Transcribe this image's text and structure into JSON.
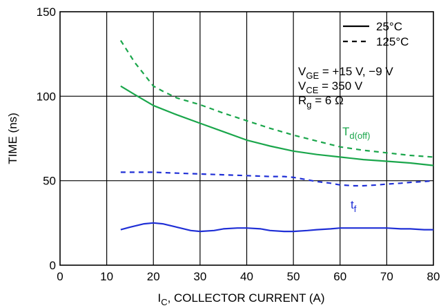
{
  "chart_data": {
    "type": "line",
    "xlabel": {
      "main": "I",
      "sub": "C",
      "rest": ", COLLECTOR CURRENT (A)"
    },
    "ylabel": "TIME (ns)",
    "xlim": [
      0,
      80
    ],
    "ylim": [
      0,
      150
    ],
    "xticks": [
      0,
      10,
      20,
      30,
      40,
      50,
      60,
      70,
      80
    ],
    "yticks": [
      0,
      50,
      100,
      150
    ],
    "grid": true,
    "legend": {
      "placement": "top-right",
      "entries": [
        {
          "label": "25°C",
          "style": "solid"
        },
        {
          "label": "125°C",
          "style": "dashed"
        }
      ]
    },
    "conditions": [
      {
        "main": "V",
        "sub": "GE",
        "rest": " = +15 V, −9 V"
      },
      {
        "main": "V",
        "sub": "CE",
        "rest": " = 350 V"
      },
      {
        "main": "R",
        "sub": "g",
        "rest": " = 6 Ω"
      }
    ],
    "series_labels": [
      {
        "main": "T",
        "sub": "d(off)",
        "color": "#1aa64b"
      },
      {
        "main": "t",
        "sub": "f",
        "color": "#1f2fd6"
      }
    ],
    "series": [
      {
        "group": "Td(off)",
        "style": "solid",
        "color": "#1aa64b",
        "x": [
          13,
          16,
          20,
          25,
          30,
          35,
          40,
          45,
          50,
          55,
          60,
          65,
          70,
          75,
          80
        ],
        "y": [
          106,
          101,
          94.5,
          89,
          84,
          79,
          74,
          70.5,
          67.5,
          65.5,
          64,
          62.5,
          61.5,
          60.5,
          59
        ]
      },
      {
        "group": "Td(off)",
        "style": "dashed",
        "color": "#1aa64b",
        "x": [
          13,
          16,
          20,
          22,
          25,
          30,
          35,
          40,
          45,
          50,
          55,
          60,
          65,
          70,
          75,
          80
        ],
        "y": [
          133,
          120,
          106,
          103,
          99,
          95,
          90,
          85.5,
          81,
          77,
          73.5,
          70,
          68,
          66.5,
          65,
          64
        ]
      },
      {
        "group": "tf",
        "style": "solid",
        "color": "#1f2fd6",
        "x": [
          13,
          15,
          18,
          20,
          22,
          25,
          28,
          30,
          33,
          35,
          38,
          40,
          43,
          45,
          48,
          50,
          53,
          55,
          58,
          60,
          63,
          65,
          68,
          70,
          73,
          75,
          78,
          80
        ],
        "y": [
          21,
          22.5,
          24.5,
          25,
          24.5,
          22.5,
          20.5,
          20,
          20.5,
          21.5,
          22,
          22,
          21.5,
          20.5,
          20,
          20,
          20.5,
          21,
          21.5,
          22,
          22,
          22,
          22,
          22,
          21.5,
          21.5,
          21,
          21
        ]
      },
      {
        "group": "tf",
        "style": "dashed",
        "color": "#1f2fd6",
        "x": [
          13,
          16,
          20,
          25,
          30,
          35,
          40,
          45,
          48,
          50,
          53,
          55,
          58,
          60,
          63,
          65,
          68,
          70,
          73,
          75,
          78,
          80
        ],
        "y": [
          55,
          55,
          55,
          54.5,
          54,
          53.5,
          53,
          52.5,
          52.5,
          52,
          50.5,
          49.5,
          48.5,
          47.5,
          47,
          47,
          47.5,
          48,
          48.5,
          49,
          49.5,
          50
        ]
      }
    ]
  }
}
